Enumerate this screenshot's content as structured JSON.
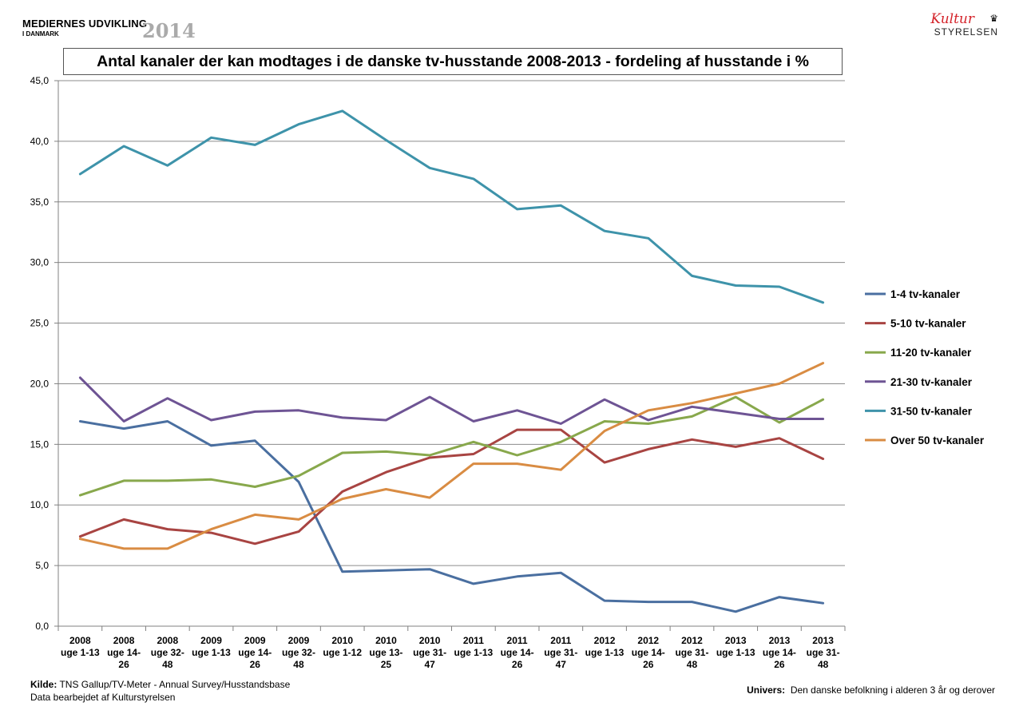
{
  "header": {
    "brand_line1": "MEDIERNES UDVIKLING",
    "brand_line2": "I DANMARK",
    "brand_year": "2014",
    "logo_script": "Kultur",
    "logo_text": "STYRELSEN"
  },
  "footer": {
    "source_label": "Kilde:",
    "source_text": "TNS Gallup/TV-Meter -  Annual Survey/Husstandsbase",
    "processed": "Data bearbejdet af  Kulturstyrelsen",
    "univers_label": "Univers:",
    "univers_text": "Den danske befolkning i alderen 3 år og derover"
  },
  "colors": {
    "grid": "#8c8c8c",
    "axis": "#808080"
  },
  "chart_data": {
    "type": "line",
    "title": "Antal kanaler der kan modtages i de danske tv-husstande 2008-2013 - fordeling af husstande i %",
    "ylim": [
      0,
      45
    ],
    "yticks": [
      "0,0",
      "5,0",
      "10,0",
      "15,0",
      "20,0",
      "25,0",
      "30,0",
      "35,0",
      "40,0",
      "45,0"
    ],
    "grid": true,
    "legend_position": "right",
    "categories": [
      [
        "2008",
        "uge 1-13"
      ],
      [
        "2008",
        "uge 14-",
        "26"
      ],
      [
        "2008",
        "uge 32-",
        "48"
      ],
      [
        "2009",
        "uge 1-13"
      ],
      [
        "2009",
        "uge 14-",
        "26"
      ],
      [
        "2009",
        "uge 32-",
        "48"
      ],
      [
        "2010",
        "uge 1-12"
      ],
      [
        "2010",
        "uge 13-",
        "25"
      ],
      [
        "2010",
        "uge 31-",
        "47"
      ],
      [
        "2011",
        "uge 1-13"
      ],
      [
        "2011",
        "uge 14-",
        "26"
      ],
      [
        "2011",
        "uge 31-",
        "47"
      ],
      [
        "2012",
        "uge 1-13"
      ],
      [
        "2012",
        "uge 14-",
        "26"
      ],
      [
        "2012",
        "uge 31-",
        "48"
      ],
      [
        "2013",
        "uge 1-13"
      ],
      [
        "2013",
        "uge 14-",
        "26"
      ],
      [
        "2013",
        "uge 31-",
        "48"
      ]
    ],
    "series": [
      {
        "name": "1-4 tv-kanaler",
        "color": "#4a6fa0",
        "values": [
          16.9,
          16.3,
          16.9,
          14.9,
          15.3,
          11.9,
          4.5,
          4.6,
          4.7,
          3.5,
          4.1,
          4.4,
          2.1,
          2.0,
          2.0,
          1.2,
          2.4,
          1.9
        ]
      },
      {
        "name": "5-10 tv-kanaler",
        "color": "#a84442",
        "values": [
          7.4,
          8.8,
          8.0,
          7.7,
          6.8,
          7.8,
          11.1,
          12.7,
          13.9,
          14.2,
          16.2,
          16.2,
          13.5,
          14.6,
          15.4,
          14.8,
          15.5,
          13.8
        ]
      },
      {
        "name": "11-20 tv-kanaler",
        "color": "#88a84c",
        "values": [
          10.8,
          12.0,
          12.0,
          12.1,
          11.5,
          12.4,
          14.3,
          14.4,
          14.1,
          15.2,
          14.1,
          15.2,
          16.9,
          16.7,
          17.3,
          18.9,
          16.8,
          18.7
        ]
      },
      {
        "name": "21-30 tv-kanaler",
        "color": "#6e5494",
        "values": [
          20.5,
          16.9,
          18.8,
          17.0,
          17.7,
          17.8,
          17.2,
          17.0,
          18.9,
          16.9,
          17.8,
          16.7,
          18.7,
          17.0,
          18.1,
          17.6,
          17.1,
          17.1
        ]
      },
      {
        "name": "31-50 tv-kanaler",
        "color": "#3e93aa",
        "values": [
          37.3,
          39.6,
          38.0,
          40.3,
          39.7,
          41.4,
          42.5,
          40.1,
          37.8,
          36.9,
          34.4,
          34.7,
          32.6,
          32.0,
          28.9,
          28.1,
          28.0,
          26.7
        ]
      },
      {
        "name": "Over 50 tv-kanaler",
        "color": "#d98c43",
        "values": [
          7.2,
          6.4,
          6.4,
          8.0,
          9.2,
          8.8,
          10.5,
          11.3,
          10.6,
          13.4,
          13.4,
          12.9,
          16.1,
          17.8,
          18.4,
          19.2,
          20.0,
          21.7
        ]
      }
    ]
  }
}
